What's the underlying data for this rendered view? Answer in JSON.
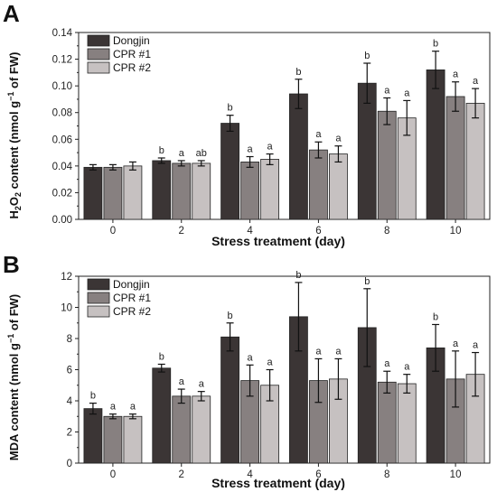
{
  "chart_data": [
    {
      "type": "bar",
      "panel": "A",
      "categories": [
        "0",
        "2",
        "4",
        "6",
        "8",
        "10"
      ],
      "xlabel": "Stress treatment (day)",
      "ylabel": "H2O2 content (nmol g−1 of FW)",
      "ylabel_parts": {
        "pre": "H",
        "sub1": "2",
        "mid": "O",
        "sub2": "2",
        "post": " content (nmol g",
        "sup": "−1",
        "end": " of FW)"
      },
      "ylim": [
        0,
        0.14
      ],
      "yticks": [
        0.0,
        0.02,
        0.04,
        0.06,
        0.08,
        0.1,
        0.12,
        0.14
      ],
      "ytick_labels": [
        "0.00",
        "0.02",
        "0.04",
        "0.06",
        "0.08",
        "0.10",
        "0.12",
        "0.14"
      ],
      "legend_position": "top-left",
      "series": [
        {
          "name": "Dongjin",
          "color": "#3b3535",
          "values": [
            0.039,
            0.044,
            0.072,
            0.094,
            0.102,
            0.112
          ],
          "errors": [
            0.002,
            0.002,
            0.006,
            0.011,
            0.015,
            0.014
          ],
          "letters": [
            "",
            "b",
            "b",
            "b",
            "b",
            "b"
          ]
        },
        {
          "name": "CPR #1",
          "color": "#878080",
          "values": [
            0.039,
            0.042,
            0.043,
            0.052,
            0.081,
            0.092
          ],
          "errors": [
            0.002,
            0.002,
            0.004,
            0.006,
            0.01,
            0.011
          ],
          "letters": [
            "",
            "a",
            "a",
            "a",
            "a",
            "a"
          ]
        },
        {
          "name": "CPR #2",
          "color": "#c6c1c1",
          "values": [
            0.04,
            0.042,
            0.045,
            0.049,
            0.076,
            0.087
          ],
          "errors": [
            0.003,
            0.002,
            0.004,
            0.006,
            0.013,
            0.011
          ],
          "letters": [
            "",
            "ab",
            "a",
            "a",
            "a",
            "a"
          ]
        }
      ]
    },
    {
      "type": "bar",
      "panel": "B",
      "categories": [
        "0",
        "2",
        "4",
        "6",
        "8",
        "10"
      ],
      "xlabel": "Stress treatment (day)",
      "ylabel": "MDA content (nmol g−1 of FW)",
      "ylabel_parts": {
        "pre": "MDA content (nmol g",
        "sup": "−1",
        "end": " of FW)"
      },
      "ylim": [
        0,
        12
      ],
      "yticks": [
        0,
        2,
        4,
        6,
        8,
        10,
        12
      ],
      "ytick_labels": [
        "0",
        "2",
        "4",
        "6",
        "8",
        "10",
        "12"
      ],
      "legend_position": "top-left",
      "series": [
        {
          "name": "Dongjin",
          "color": "#3b3535",
          "values": [
            3.5,
            6.1,
            8.1,
            9.4,
            8.7,
            7.4
          ],
          "errors": [
            0.35,
            0.25,
            0.9,
            2.2,
            2.5,
            1.5
          ],
          "letters": [
            "b",
            "b",
            "b",
            "b",
            "b",
            "b"
          ]
        },
        {
          "name": "CPR #1",
          "color": "#878080",
          "values": [
            3.0,
            4.3,
            5.3,
            5.3,
            5.2,
            5.4
          ],
          "errors": [
            0.15,
            0.45,
            1.0,
            1.4,
            0.7,
            1.8
          ],
          "letters": [
            "a",
            "a",
            "a",
            "a",
            "a",
            "a"
          ]
        },
        {
          "name": "CPR #2",
          "color": "#c6c1c1",
          "values": [
            3.0,
            4.3,
            5.0,
            5.4,
            5.1,
            5.7
          ],
          "errors": [
            0.15,
            0.3,
            1.0,
            1.3,
            0.6,
            1.4
          ],
          "letters": [
            "a",
            "a",
            "a",
            "a",
            "a",
            "a"
          ]
        }
      ]
    }
  ]
}
